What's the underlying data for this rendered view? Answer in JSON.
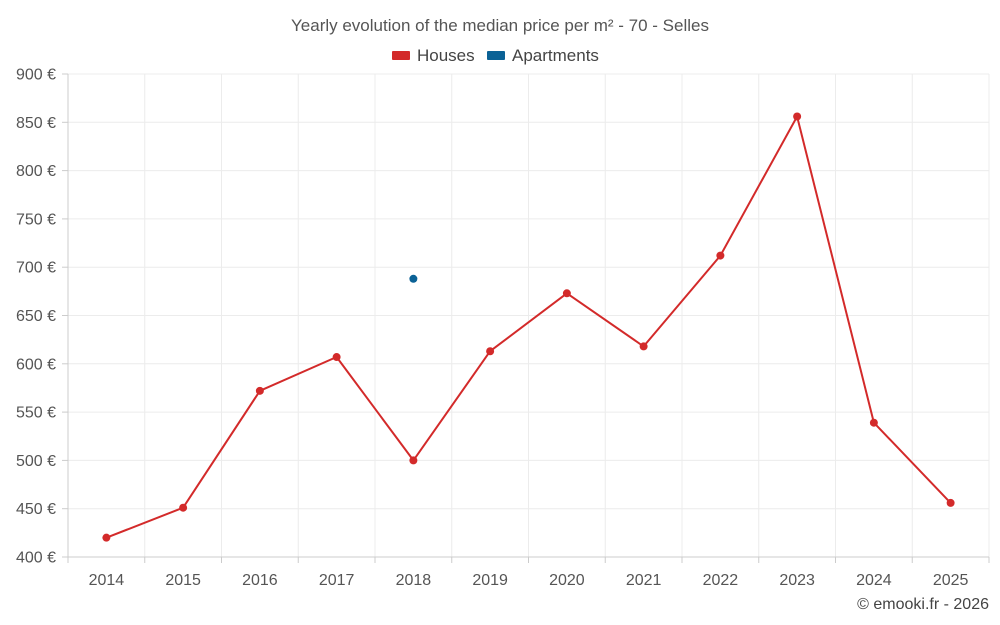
{
  "chart_data": {
    "type": "line",
    "title": "Yearly evolution of the median price per m² - 70 - Selles",
    "categories": [
      "2014",
      "2015",
      "2016",
      "2017",
      "2018",
      "2019",
      "2020",
      "2021",
      "2022",
      "2023",
      "2024",
      "2025"
    ],
    "series": [
      {
        "name": "Houses",
        "color": "#d32a2a",
        "values": [
          420,
          451,
          572,
          607,
          500,
          613,
          673,
          618,
          712,
          856,
          539,
          456
        ]
      },
      {
        "name": "Apartments",
        "color": "#0b6296",
        "values": [
          null,
          null,
          null,
          null,
          688,
          null,
          null,
          null,
          null,
          null,
          null,
          null
        ]
      }
    ],
    "ylim": [
      400,
      900
    ],
    "ytick_step": 50,
    "ytick_suffix": " €",
    "xlabel": "",
    "ylabel": "",
    "legend": "top-center",
    "grid": true
  },
  "credit": "© emooki.fr - 2026"
}
